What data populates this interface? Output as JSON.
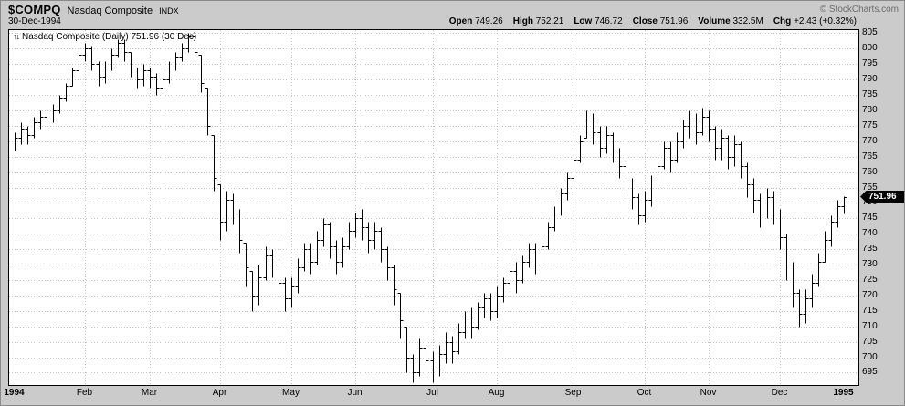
{
  "header": {
    "symbol": "$COMPQ",
    "name": "Nasdaq Composite",
    "exchange": "INDX",
    "copyright": "© StockCharts.com",
    "date": "30-Dec-1994",
    "quote": [
      {
        "label": "Open",
        "value": "749.26"
      },
      {
        "label": "High",
        "value": "752.21"
      },
      {
        "label": "Low",
        "value": "746.72"
      },
      {
        "label": "Close",
        "value": "751.96"
      },
      {
        "label": "Volume",
        "value": "332.5M"
      },
      {
        "label": "Chg",
        "value": "+2.43 (+0.32%)"
      }
    ]
  },
  "chart_data": {
    "type": "ohlc",
    "title": "Nasdaq Composite (Daily)",
    "legend": {
      "icon": "↑↓",
      "text": "Nasdaq Composite (Daily) 751.96 (30 Dec)"
    },
    "legend_position": "top-left",
    "grid": true,
    "last_price": 751.96,
    "last_price_label": "751.96",
    "y_axis": {
      "label_min": 695,
      "label_max": 805,
      "step": 5,
      "range": [
        691,
        806
      ]
    },
    "x_ticks": [
      {
        "label": "1994",
        "i": 0,
        "line": false,
        "bold": true
      },
      {
        "label": "Feb",
        "i": 11,
        "line": true,
        "bold": false
      },
      {
        "label": "Mar",
        "i": 21,
        "line": true,
        "bold": false
      },
      {
        "label": "Apr",
        "i": 32,
        "line": true,
        "bold": false
      },
      {
        "label": "May",
        "i": 43,
        "line": true,
        "bold": false
      },
      {
        "label": "Jun",
        "i": 53,
        "line": true,
        "bold": false
      },
      {
        "label": "Jul",
        "i": 65,
        "line": true,
        "bold": false
      },
      {
        "label": "Aug",
        "i": 75,
        "line": true,
        "bold": false
      },
      {
        "label": "Sep",
        "i": 87,
        "line": true,
        "bold": false
      },
      {
        "label": "Oct",
        "i": 98,
        "line": true,
        "bold": false
      },
      {
        "label": "Nov",
        "i": 108,
        "line": true,
        "bold": false
      },
      {
        "label": "Dec",
        "i": 119,
        "line": true,
        "bold": false
      },
      {
        "label": "1995",
        "i": 129,
        "line": false,
        "bold": true
      }
    ],
    "bars_format": [
      "high",
      "low",
      "close"
    ],
    "bars": [
      [
        773,
        767,
        771
      ],
      [
        776,
        769,
        774
      ],
      [
        775,
        769,
        772
      ],
      [
        778,
        771,
        776
      ],
      [
        780,
        774,
        778
      ],
      [
        780,
        774,
        777
      ],
      [
        782,
        776,
        780
      ],
      [
        785,
        779,
        784
      ],
      [
        789,
        783,
        788
      ],
      [
        794,
        788,
        793
      ],
      [
        799,
        792,
        798
      ],
      [
        802,
        796,
        800
      ],
      [
        801,
        793,
        795
      ],
      [
        796,
        788,
        791
      ],
      [
        796,
        789,
        794
      ],
      [
        800,
        793,
        798
      ],
      [
        803,
        797,
        802
      ],
      [
        803,
        796,
        799
      ],
      [
        799,
        791,
        794
      ],
      [
        794,
        787,
        790
      ],
      [
        795,
        788,
        793
      ],
      [
        794,
        787,
        791
      ],
      [
        792,
        785,
        787
      ],
      [
        793,
        786,
        790
      ],
      [
        796,
        789,
        794
      ],
      [
        799,
        793,
        797
      ],
      [
        802,
        796,
        800
      ],
      [
        805,
        799,
        804
      ],
      [
        804,
        796,
        799
      ],
      [
        798,
        786,
        789
      ],
      [
        787,
        772,
        775
      ],
      [
        772,
        754,
        758
      ],
      [
        756,
        738,
        744
      ],
      [
        754,
        741,
        751
      ],
      [
        753,
        743,
        747
      ],
      [
        748,
        734,
        738
      ],
      [
        737,
        723,
        729
      ],
      [
        728,
        715,
        720
      ],
      [
        730,
        717,
        726
      ],
      [
        736,
        725,
        733
      ],
      [
        735,
        726,
        730
      ],
      [
        731,
        720,
        724
      ],
      [
        726,
        715,
        719
      ],
      [
        726,
        716,
        723
      ],
      [
        732,
        721,
        729
      ],
      [
        737,
        728,
        735
      ],
      [
        737,
        727,
        731
      ],
      [
        741,
        730,
        738
      ],
      [
        745,
        736,
        743
      ],
      [
        744,
        732,
        736
      ],
      [
        738,
        727,
        731
      ],
      [
        739,
        729,
        736
      ],
      [
        744,
        735,
        741
      ],
      [
        747,
        739,
        745
      ],
      [
        748,
        738,
        742
      ],
      [
        744,
        734,
        738
      ],
      [
        744,
        735,
        741
      ],
      [
        742,
        731,
        735
      ],
      [
        736,
        725,
        729
      ],
      [
        730,
        717,
        722
      ],
      [
        721,
        706,
        712
      ],
      [
        710,
        695,
        700
      ],
      [
        701,
        692,
        695
      ],
      [
        706,
        694,
        703
      ],
      [
        705,
        695,
        699
      ],
      [
        702,
        692,
        696
      ],
      [
        704,
        694,
        701
      ],
      [
        708,
        698,
        705
      ],
      [
        707,
        698,
        702
      ],
      [
        711,
        701,
        708
      ],
      [
        715,
        706,
        713
      ],
      [
        716,
        706,
        710
      ],
      [
        718,
        709,
        716
      ],
      [
        721,
        713,
        719
      ],
      [
        721,
        712,
        715
      ],
      [
        723,
        713,
        720
      ],
      [
        726,
        718,
        724
      ],
      [
        730,
        722,
        728
      ],
      [
        731,
        721,
        725
      ],
      [
        733,
        724,
        731
      ],
      [
        737,
        729,
        735
      ],
      [
        737,
        727,
        730
      ],
      [
        739,
        729,
        736
      ],
      [
        744,
        735,
        742
      ],
      [
        749,
        741,
        747
      ],
      [
        755,
        746,
        753
      ],
      [
        760,
        751,
        758
      ],
      [
        766,
        757,
        764
      ],
      [
        772,
        763,
        770
      ],
      [
        780,
        771,
        777
      ],
      [
        779,
        769,
        773
      ],
      [
        775,
        765,
        768
      ],
      [
        775,
        766,
        772
      ],
      [
        773,
        763,
        767
      ],
      [
        768,
        758,
        762
      ],
      [
        763,
        753,
        757
      ],
      [
        758,
        748,
        752
      ],
      [
        753,
        743,
        746
      ],
      [
        754,
        744,
        751
      ],
      [
        759,
        749,
        757
      ],
      [
        764,
        755,
        762
      ],
      [
        770,
        761,
        768
      ],
      [
        770,
        760,
        764
      ],
      [
        773,
        763,
        770
      ],
      [
        777,
        768,
        775
      ],
      [
        780,
        771,
        777
      ],
      [
        779,
        769,
        773
      ],
      [
        781,
        772,
        778
      ],
      [
        780,
        770,
        774
      ],
      [
        775,
        764,
        768
      ],
      [
        774,
        764,
        771
      ],
      [
        772,
        761,
        765
      ],
      [
        772,
        762,
        769
      ],
      [
        770,
        758,
        762
      ],
      [
        763,
        752,
        756
      ],
      [
        758,
        747,
        751
      ],
      [
        753,
        742,
        747
      ],
      [
        755,
        745,
        752
      ],
      [
        754,
        743,
        747
      ],
      [
        748,
        735,
        739
      ],
      [
        740,
        725,
        730
      ],
      [
        731,
        716,
        721
      ],
      [
        722,
        710,
        714
      ],
      [
        722,
        711,
        719
      ],
      [
        727,
        716,
        724
      ],
      [
        734,
        723,
        731
      ],
      [
        741,
        731,
        738
      ],
      [
        746,
        736,
        744
      ],
      [
        751,
        742,
        749
      ],
      [
        752.21,
        746.72,
        751.96
      ]
    ]
  }
}
